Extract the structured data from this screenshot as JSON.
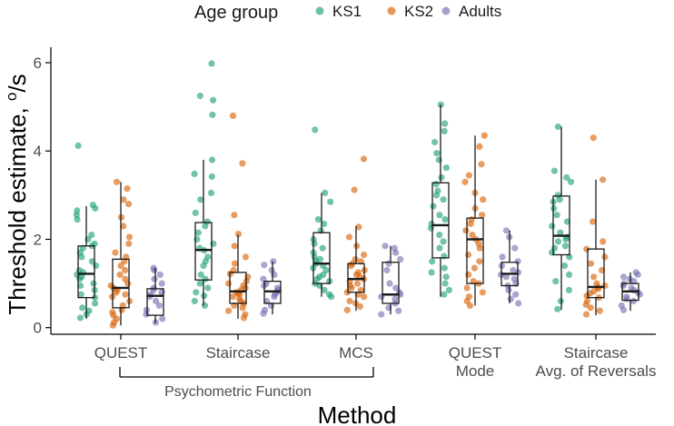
{
  "chart_data": {
    "type": "box+jitter",
    "xlabel": "Method",
    "ylabel": "Threshold estimate, °/s",
    "ylabel_main": "Threshold estimate, ",
    "ylabel_unit_sup": "o",
    "ylabel_unit": "/s",
    "ylim": [
      -0.15,
      6.35
    ],
    "yticks": [
      0,
      2,
      4,
      6
    ],
    "grid": false,
    "legend": {
      "title": "Age group",
      "placement": "top",
      "entries": [
        "KS1",
        "KS2",
        "Adults"
      ]
    },
    "colors": {
      "KS1": "#1b9e77",
      "KS2": "#d95f02",
      "Adults": "#7570b3"
    },
    "categories": [
      "QUEST",
      "Staircase",
      "MCS",
      "QUEST\nMode",
      "Staircase\nAvg. of Reversals"
    ],
    "category_lines": [
      [
        "QUEST"
      ],
      [
        "Staircase"
      ],
      [
        "MCS"
      ],
      [
        "QUEST",
        "Mode"
      ],
      [
        "Staircase",
        "Avg. of Reversals"
      ]
    ],
    "bracket": {
      "label": "Psychometric Function",
      "spans": [
        "QUEST",
        "MCS"
      ]
    },
    "series": [
      {
        "name": "KS1",
        "boxes": [
          {
            "q1": 0.68,
            "median": 1.22,
            "q3": 1.85,
            "lower": 0.2,
            "upper": 2.75
          },
          {
            "q1": 1.08,
            "median": 1.76,
            "q3": 2.38,
            "lower": 0.5,
            "upper": 3.8
          },
          {
            "q1": 1.0,
            "median": 1.45,
            "q3": 2.15,
            "lower": 0.7,
            "upper": 3.05
          },
          {
            "q1": 1.58,
            "median": 2.32,
            "q3": 3.28,
            "lower": 0.7,
            "upper": 5.05
          },
          {
            "q1": 1.65,
            "median": 2.08,
            "q3": 2.98,
            "lower": 0.4,
            "upper": 4.55
          }
        ],
        "points": [
          [
            4.12,
            2.78,
            2.7,
            2.65,
            2.55,
            2.45,
            2.1,
            2.0,
            1.9,
            1.85,
            1.8,
            1.7,
            1.6,
            1.5,
            1.4,
            1.3,
            1.25,
            1.2,
            1.15,
            1.1,
            1.0,
            0.95,
            0.85,
            0.75,
            0.68,
            0.55,
            0.45,
            0.38,
            0.3,
            0.22
          ],
          [
            5.98,
            5.25,
            5.15,
            4.82,
            3.8,
            3.48,
            3.42,
            3.05,
            2.9,
            2.6,
            2.4,
            2.3,
            2.15,
            2.0,
            1.9,
            1.8,
            1.75,
            1.6,
            1.5,
            1.4,
            1.2,
            1.1,
            1.0,
            0.9,
            0.8,
            0.72,
            0.6,
            0.5
          ],
          [
            4.48,
            3.05,
            2.85,
            2.45,
            2.35,
            2.2,
            2.0,
            1.9,
            1.8,
            1.7,
            1.6,
            1.55,
            1.5,
            1.45,
            1.4,
            1.35,
            1.3,
            1.2,
            1.15,
            1.1,
            1.05,
            1.0,
            0.95,
            0.85,
            0.75,
            0.7
          ],
          [
            5.05,
            4.62,
            4.45,
            4.2,
            3.95,
            3.8,
            3.62,
            3.4,
            3.25,
            3.1,
            3.0,
            2.9,
            2.75,
            2.55,
            2.45,
            2.35,
            2.25,
            2.1,
            1.95,
            1.8,
            1.62,
            1.5,
            1.35,
            1.25,
            1.15,
            1.0,
            0.85,
            0.75
          ],
          [
            4.55,
            3.55,
            3.4,
            3.3,
            3.0,
            2.9,
            2.85,
            2.7,
            2.55,
            2.4,
            2.3,
            2.15,
            2.05,
            2.0,
            1.95,
            1.85,
            1.8,
            1.7,
            1.6,
            1.4,
            1.2,
            1.05,
            0.85,
            0.6,
            0.42
          ]
        ]
      },
      {
        "name": "KS2",
        "boxes": [
          {
            "q1": 0.45,
            "median": 0.9,
            "q3": 1.55,
            "lower": 0.05,
            "upper": 3.3
          },
          {
            "q1": 0.55,
            "median": 0.82,
            "q3": 1.25,
            "lower": 0.2,
            "upper": 2.1
          },
          {
            "q1": 0.8,
            "median": 1.1,
            "q3": 1.45,
            "lower": 0.38,
            "upper": 2.3
          },
          {
            "q1": 1.0,
            "median": 2.0,
            "q3": 2.48,
            "lower": 0.5,
            "upper": 4.35
          },
          {
            "q1": 0.68,
            "median": 0.92,
            "q3": 1.78,
            "lower": 0.28,
            "upper": 3.35
          }
        ],
        "points": [
          [
            3.3,
            3.15,
            2.9,
            2.8,
            2.5,
            2.3,
            2.05,
            1.9,
            1.7,
            1.6,
            1.5,
            1.4,
            1.3,
            1.2,
            1.1,
            1.0,
            0.95,
            0.9,
            0.85,
            0.8,
            0.75,
            0.7,
            0.6,
            0.5,
            0.4,
            0.35,
            0.28,
            0.2,
            0.12,
            0.05
          ],
          [
            4.8,
            3.72,
            2.55,
            2.12,
            1.85,
            1.6,
            1.45,
            1.3,
            1.22,
            1.15,
            1.05,
            1.0,
            0.95,
            0.9,
            0.85,
            0.8,
            0.78,
            0.75,
            0.7,
            0.65,
            0.6,
            0.55,
            0.5,
            0.45,
            0.38,
            0.3,
            0.22
          ],
          [
            3.82,
            3.12,
            2.28,
            2.05,
            1.85,
            1.65,
            1.55,
            1.5,
            1.45,
            1.4,
            1.3,
            1.25,
            1.2,
            1.15,
            1.1,
            1.05,
            1.0,
            0.95,
            0.9,
            0.85,
            0.8,
            0.75,
            0.7,
            0.6,
            0.55,
            0.48,
            0.4
          ],
          [
            4.35,
            4.1,
            3.7,
            3.45,
            3.3,
            3.05,
            2.9,
            2.7,
            2.55,
            2.45,
            2.35,
            2.2,
            2.1,
            2.0,
            1.9,
            1.8,
            1.65,
            1.5,
            1.35,
            1.2,
            1.05,
            1.0,
            0.9,
            0.8,
            0.7,
            0.6,
            0.5
          ],
          [
            4.3,
            3.35,
            2.4,
            1.95,
            1.78,
            1.6,
            1.45,
            1.3,
            1.15,
            1.0,
            0.95,
            0.92,
            0.88,
            0.82,
            0.78,
            0.72,
            0.68,
            0.6,
            0.52,
            0.45,
            0.38,
            0.3
          ]
        ]
      },
      {
        "name": "Adults",
        "boxes": [
          {
            "q1": 0.28,
            "median": 0.72,
            "q3": 0.88,
            "lower": 0.1,
            "upper": 1.35
          },
          {
            "q1": 0.55,
            "median": 0.82,
            "q3": 1.05,
            "lower": 0.3,
            "upper": 1.5
          },
          {
            "q1": 0.55,
            "median": 0.75,
            "q3": 1.48,
            "lower": 0.3,
            "upper": 1.85
          },
          {
            "q1": 0.95,
            "median": 1.22,
            "q3": 1.48,
            "lower": 0.55,
            "upper": 2.2
          },
          {
            "q1": 0.62,
            "median": 0.82,
            "q3": 1.0,
            "lower": 0.38,
            "upper": 1.25
          }
        ],
        "points": [
          [
            1.35,
            1.3,
            1.2,
            1.1,
            1.0,
            0.9,
            0.85,
            0.8,
            0.75,
            0.7,
            0.6,
            0.5,
            0.4,
            0.3,
            0.2,
            0.12
          ],
          [
            1.5,
            1.42,
            1.3,
            1.2,
            1.1,
            1.0,
            0.95,
            0.9,
            0.85,
            0.8,
            0.75,
            0.7,
            0.6,
            0.5,
            0.4,
            0.32
          ],
          [
            1.85,
            1.8,
            1.7,
            1.55,
            1.45,
            1.3,
            1.0,
            0.9,
            0.8,
            0.75,
            0.7,
            0.65,
            0.55,
            0.45,
            0.38,
            0.3
          ],
          [
            2.2,
            2.05,
            1.8,
            1.6,
            1.5,
            1.4,
            1.3,
            1.25,
            1.2,
            1.15,
            1.1,
            1.0,
            0.95,
            0.85,
            0.75,
            0.65,
            0.55
          ],
          [
            1.25,
            1.2,
            1.15,
            1.1,
            1.05,
            1.0,
            0.95,
            0.9,
            0.85,
            0.8,
            0.75,
            0.7,
            0.65,
            0.6,
            0.5,
            0.4
          ]
        ]
      }
    ]
  }
}
